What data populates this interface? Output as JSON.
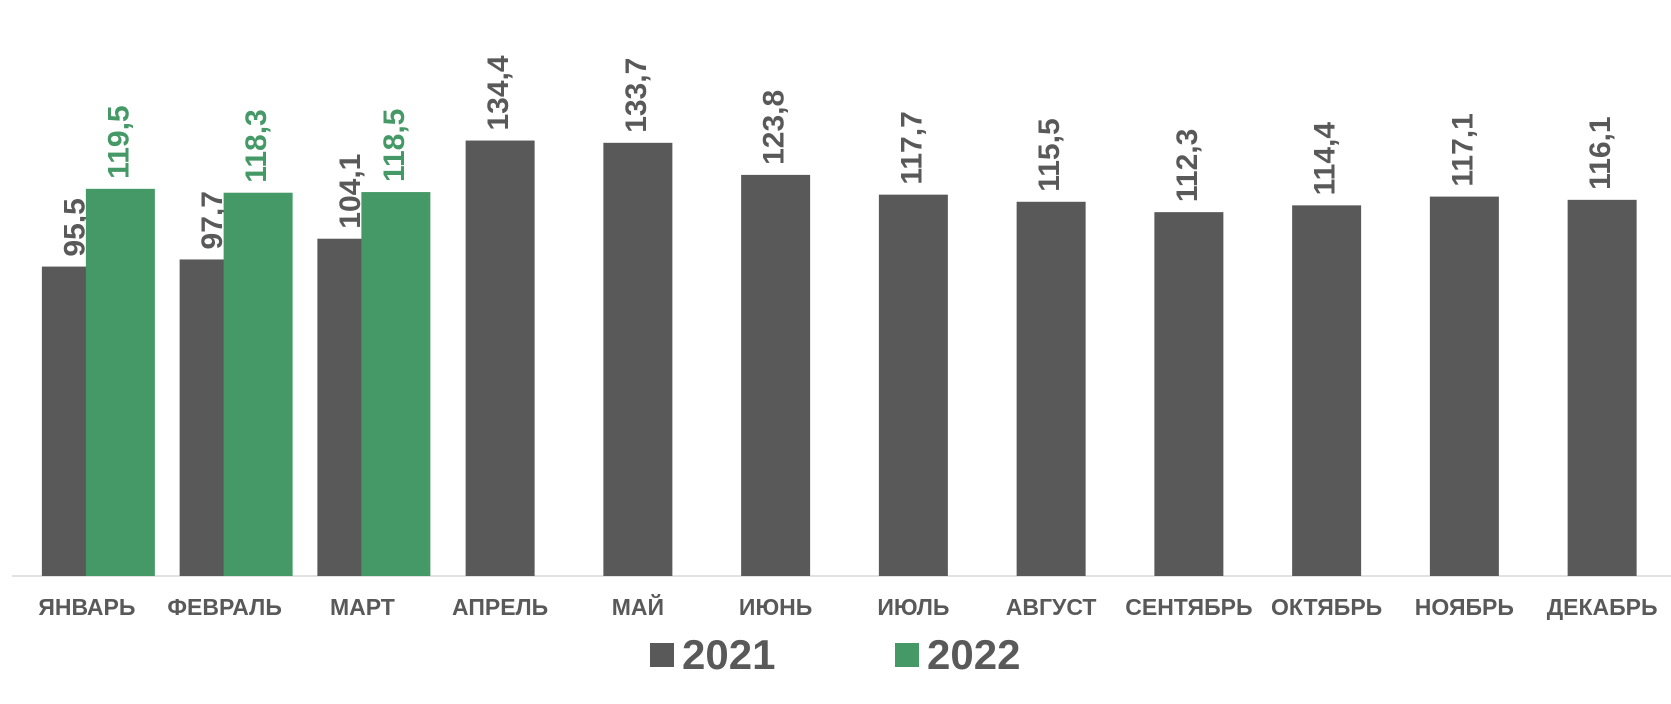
{
  "chart_data": {
    "type": "bar",
    "categories": [
      "ЯНВАРЬ",
      "ФЕВРАЛЬ",
      "МАРТ",
      "АПРЕЛЬ",
      "МАЙ",
      "ИЮНЬ",
      "ИЮЛЬ",
      "АВГУСТ",
      "СЕНТЯБРЬ",
      "ОКТЯБРЬ",
      "НОЯБРЬ",
      "ДЕКАБРЬ"
    ],
    "series": [
      {
        "name": "2021",
        "color": "#595959",
        "values": [
          95.5,
          97.7,
          104.1,
          134.4,
          133.7,
          123.8,
          117.7,
          115.5,
          112.3,
          114.4,
          117.1,
          116.1
        ],
        "labels": [
          "95,5",
          "97,7",
          "104,1",
          "134,4",
          "133,7",
          "123,8",
          "117,7",
          "115,5",
          "112,3",
          "114,4",
          "117,1",
          "116,1"
        ]
      },
      {
        "name": "2022",
        "color": "#449966",
        "values": [
          119.5,
          118.3,
          118.5,
          null,
          null,
          null,
          null,
          null,
          null,
          null,
          null,
          null
        ],
        "labels": [
          "119,5",
          "118,3",
          "118,5",
          "",
          "",
          "",
          "",
          "",
          "",
          "",
          "",
          ""
        ]
      }
    ],
    "ylim": [
      0,
      165
    ],
    "grid": false,
    "legend": "bottom"
  }
}
